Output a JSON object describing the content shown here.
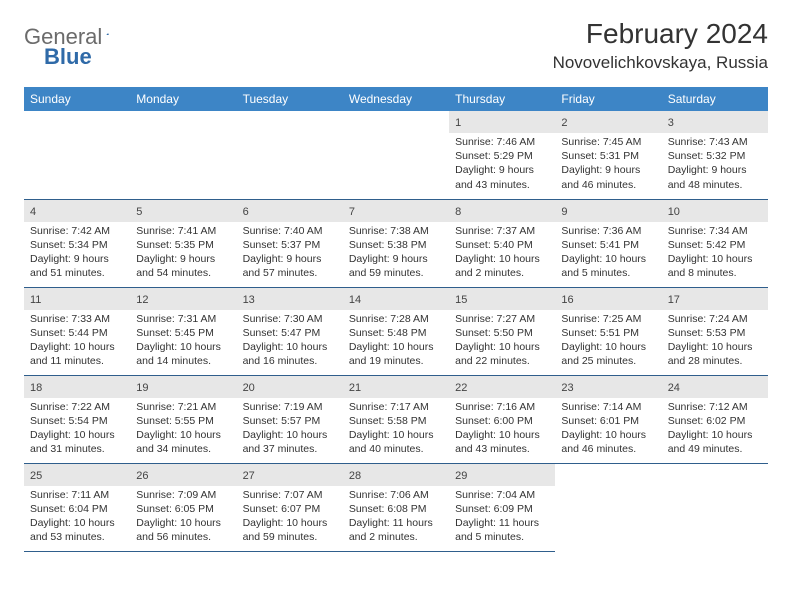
{
  "brand": {
    "general": "General",
    "blue": "Blue"
  },
  "title": {
    "month_year": "February 2024",
    "location": "Novovelichkovskaya, Russia"
  },
  "colors": {
    "header_bg": "#3d85c6",
    "header_text": "#ffffff",
    "daynum_bg": "#e7e7e7",
    "border": "#2f5e8c",
    "brand_grey": "#6b6b6b",
    "brand_blue": "#2f6aa8"
  },
  "weekdays": [
    "Sunday",
    "Monday",
    "Tuesday",
    "Wednesday",
    "Thursday",
    "Friday",
    "Saturday"
  ],
  "weeks": [
    [
      null,
      null,
      null,
      null,
      {
        "n": "1",
        "sr": "Sunrise: 7:46 AM",
        "ss": "Sunset: 5:29 PM",
        "dl1": "Daylight: 9 hours",
        "dl2": "and 43 minutes."
      },
      {
        "n": "2",
        "sr": "Sunrise: 7:45 AM",
        "ss": "Sunset: 5:31 PM",
        "dl1": "Daylight: 9 hours",
        "dl2": "and 46 minutes."
      },
      {
        "n": "3",
        "sr": "Sunrise: 7:43 AM",
        "ss": "Sunset: 5:32 PM",
        "dl1": "Daylight: 9 hours",
        "dl2": "and 48 minutes."
      }
    ],
    [
      {
        "n": "4",
        "sr": "Sunrise: 7:42 AM",
        "ss": "Sunset: 5:34 PM",
        "dl1": "Daylight: 9 hours",
        "dl2": "and 51 minutes."
      },
      {
        "n": "5",
        "sr": "Sunrise: 7:41 AM",
        "ss": "Sunset: 5:35 PM",
        "dl1": "Daylight: 9 hours",
        "dl2": "and 54 minutes."
      },
      {
        "n": "6",
        "sr": "Sunrise: 7:40 AM",
        "ss": "Sunset: 5:37 PM",
        "dl1": "Daylight: 9 hours",
        "dl2": "and 57 minutes."
      },
      {
        "n": "7",
        "sr": "Sunrise: 7:38 AM",
        "ss": "Sunset: 5:38 PM",
        "dl1": "Daylight: 9 hours",
        "dl2": "and 59 minutes."
      },
      {
        "n": "8",
        "sr": "Sunrise: 7:37 AM",
        "ss": "Sunset: 5:40 PM",
        "dl1": "Daylight: 10 hours",
        "dl2": "and 2 minutes."
      },
      {
        "n": "9",
        "sr": "Sunrise: 7:36 AM",
        "ss": "Sunset: 5:41 PM",
        "dl1": "Daylight: 10 hours",
        "dl2": "and 5 minutes."
      },
      {
        "n": "10",
        "sr": "Sunrise: 7:34 AM",
        "ss": "Sunset: 5:42 PM",
        "dl1": "Daylight: 10 hours",
        "dl2": "and 8 minutes."
      }
    ],
    [
      {
        "n": "11",
        "sr": "Sunrise: 7:33 AM",
        "ss": "Sunset: 5:44 PM",
        "dl1": "Daylight: 10 hours",
        "dl2": "and 11 minutes."
      },
      {
        "n": "12",
        "sr": "Sunrise: 7:31 AM",
        "ss": "Sunset: 5:45 PM",
        "dl1": "Daylight: 10 hours",
        "dl2": "and 14 minutes."
      },
      {
        "n": "13",
        "sr": "Sunrise: 7:30 AM",
        "ss": "Sunset: 5:47 PM",
        "dl1": "Daylight: 10 hours",
        "dl2": "and 16 minutes."
      },
      {
        "n": "14",
        "sr": "Sunrise: 7:28 AM",
        "ss": "Sunset: 5:48 PM",
        "dl1": "Daylight: 10 hours",
        "dl2": "and 19 minutes."
      },
      {
        "n": "15",
        "sr": "Sunrise: 7:27 AM",
        "ss": "Sunset: 5:50 PM",
        "dl1": "Daylight: 10 hours",
        "dl2": "and 22 minutes."
      },
      {
        "n": "16",
        "sr": "Sunrise: 7:25 AM",
        "ss": "Sunset: 5:51 PM",
        "dl1": "Daylight: 10 hours",
        "dl2": "and 25 minutes."
      },
      {
        "n": "17",
        "sr": "Sunrise: 7:24 AM",
        "ss": "Sunset: 5:53 PM",
        "dl1": "Daylight: 10 hours",
        "dl2": "and 28 minutes."
      }
    ],
    [
      {
        "n": "18",
        "sr": "Sunrise: 7:22 AM",
        "ss": "Sunset: 5:54 PM",
        "dl1": "Daylight: 10 hours",
        "dl2": "and 31 minutes."
      },
      {
        "n": "19",
        "sr": "Sunrise: 7:21 AM",
        "ss": "Sunset: 5:55 PM",
        "dl1": "Daylight: 10 hours",
        "dl2": "and 34 minutes."
      },
      {
        "n": "20",
        "sr": "Sunrise: 7:19 AM",
        "ss": "Sunset: 5:57 PM",
        "dl1": "Daylight: 10 hours",
        "dl2": "and 37 minutes."
      },
      {
        "n": "21",
        "sr": "Sunrise: 7:17 AM",
        "ss": "Sunset: 5:58 PM",
        "dl1": "Daylight: 10 hours",
        "dl2": "and 40 minutes."
      },
      {
        "n": "22",
        "sr": "Sunrise: 7:16 AM",
        "ss": "Sunset: 6:00 PM",
        "dl1": "Daylight: 10 hours",
        "dl2": "and 43 minutes."
      },
      {
        "n": "23",
        "sr": "Sunrise: 7:14 AM",
        "ss": "Sunset: 6:01 PM",
        "dl1": "Daylight: 10 hours",
        "dl2": "and 46 minutes."
      },
      {
        "n": "24",
        "sr": "Sunrise: 7:12 AM",
        "ss": "Sunset: 6:02 PM",
        "dl1": "Daylight: 10 hours",
        "dl2": "and 49 minutes."
      }
    ],
    [
      {
        "n": "25",
        "sr": "Sunrise: 7:11 AM",
        "ss": "Sunset: 6:04 PM",
        "dl1": "Daylight: 10 hours",
        "dl2": "and 53 minutes."
      },
      {
        "n": "26",
        "sr": "Sunrise: 7:09 AM",
        "ss": "Sunset: 6:05 PM",
        "dl1": "Daylight: 10 hours",
        "dl2": "and 56 minutes."
      },
      {
        "n": "27",
        "sr": "Sunrise: 7:07 AM",
        "ss": "Sunset: 6:07 PM",
        "dl1": "Daylight: 10 hours",
        "dl2": "and 59 minutes."
      },
      {
        "n": "28",
        "sr": "Sunrise: 7:06 AM",
        "ss": "Sunset: 6:08 PM",
        "dl1": "Daylight: 11 hours",
        "dl2": "and 2 minutes."
      },
      {
        "n": "29",
        "sr": "Sunrise: 7:04 AM",
        "ss": "Sunset: 6:09 PM",
        "dl1": "Daylight: 11 hours",
        "dl2": "and 5 minutes."
      },
      null,
      null
    ]
  ]
}
